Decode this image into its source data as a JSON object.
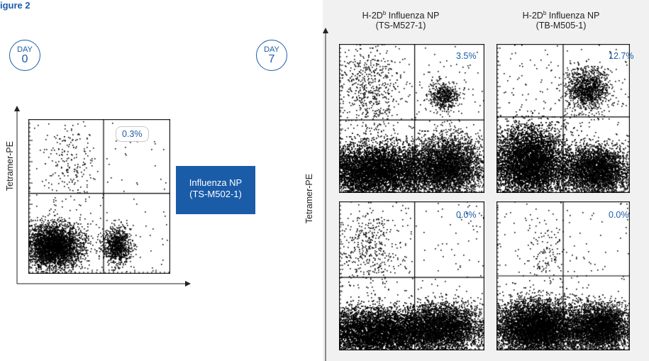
{
  "figure_label": "igure 2",
  "day0": {
    "line1": "DAY",
    "line2": "0"
  },
  "day7": {
    "line1": "DAY",
    "line2": "7"
  },
  "y_axis_label_left": "Tetramer-PE",
  "y_axis_label_right": "Tetramer-PE",
  "np_box": {
    "line1": "Influenza NP",
    "line2": "(TS-M502-1)"
  },
  "col1": {
    "line1": "H-2Db Influenza NP",
    "line2": "(TS-M527-1)"
  },
  "col2": {
    "line1": "H-2Db Influenza NP",
    "line2": "(TB-M505-1)"
  },
  "percentages": {
    "day0": "0.3%",
    "top_left": "3.5%",
    "top_right": "12.7%",
    "bottom_left": "0.0%",
    "bottom_right": "0.0%"
  },
  "colors": {
    "brand_blue": "#1a5ca8",
    "panel_bg": "#f1f1f1"
  }
}
